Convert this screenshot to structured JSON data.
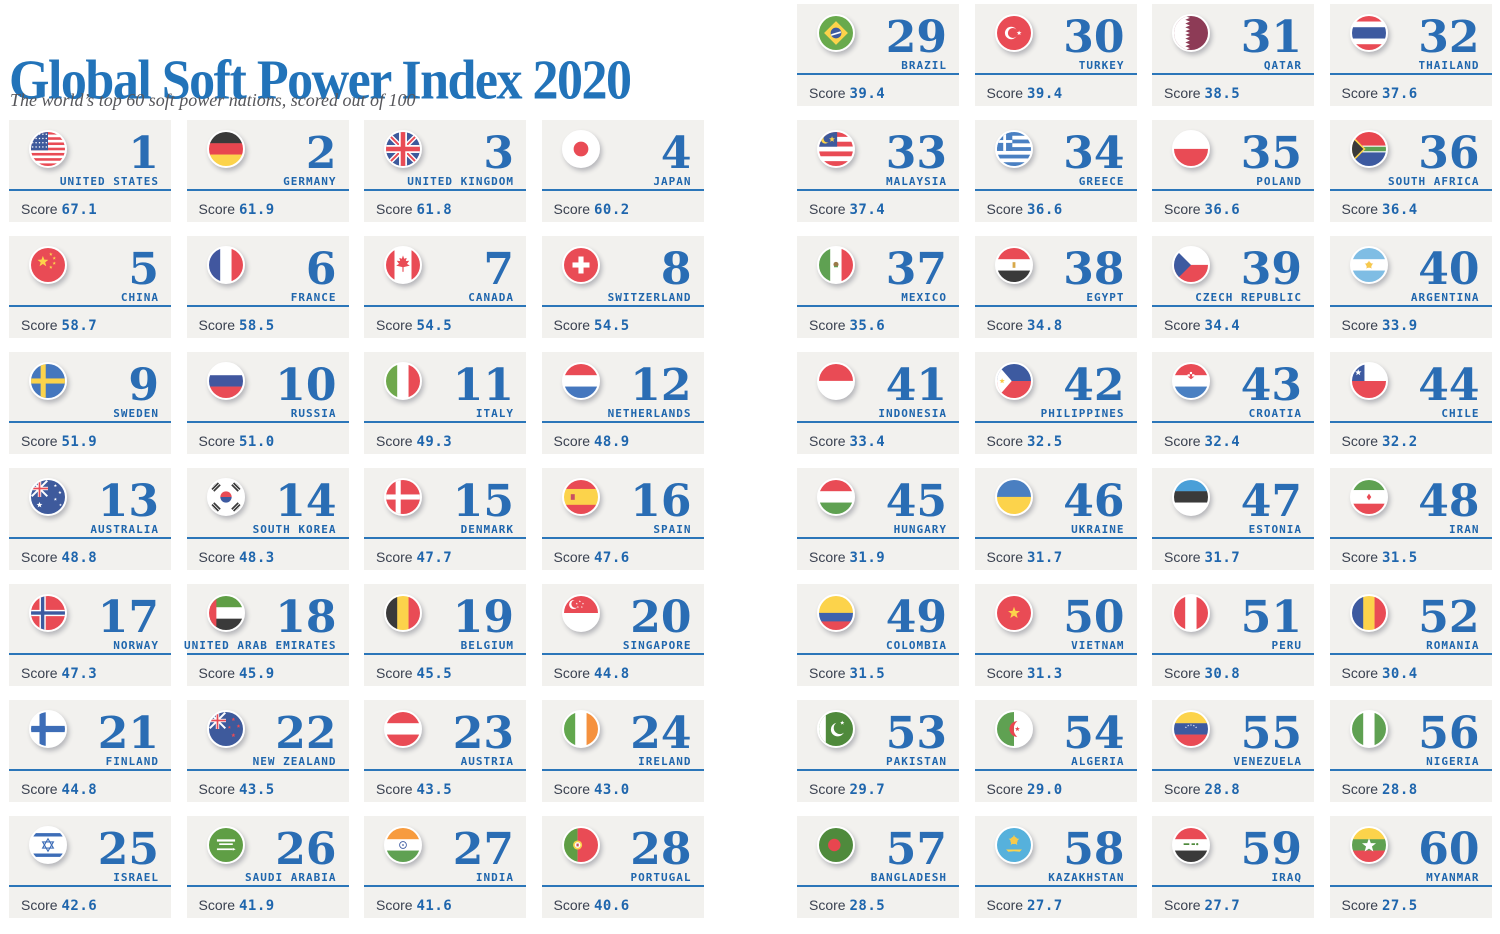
{
  "chart_data": {
    "type": "table",
    "title": "Global Soft Power Index 2020",
    "subtitle": "The world’s top 60 soft power nations, scored out of 100",
    "score_label": "Score",
    "score_range": [
      0,
      100
    ],
    "columns": [
      "rank",
      "country",
      "score"
    ],
    "rows": [
      {
        "rank": 1,
        "country": "UNITED STATES",
        "score": "67.1",
        "flag": "united-states"
      },
      {
        "rank": 2,
        "country": "GERMANY",
        "score": "61.9",
        "flag": "germany"
      },
      {
        "rank": 3,
        "country": "UNITED KINGDOM",
        "score": "61.8",
        "flag": "united-kingdom"
      },
      {
        "rank": 4,
        "country": "JAPAN",
        "score": "60.2",
        "flag": "japan"
      },
      {
        "rank": 5,
        "country": "CHINA",
        "score": "58.7",
        "flag": "china"
      },
      {
        "rank": 6,
        "country": "FRANCE",
        "score": "58.5",
        "flag": "france"
      },
      {
        "rank": 7,
        "country": "CANADA",
        "score": "54.5",
        "flag": "canada"
      },
      {
        "rank": 8,
        "country": "SWITZERLAND",
        "score": "54.5",
        "flag": "switzerland"
      },
      {
        "rank": 9,
        "country": "SWEDEN",
        "score": "51.9",
        "flag": "sweden"
      },
      {
        "rank": 10,
        "country": "RUSSIA",
        "score": "51.0",
        "flag": "russia"
      },
      {
        "rank": 11,
        "country": "ITALY",
        "score": "49.3",
        "flag": "italy"
      },
      {
        "rank": 12,
        "country": "NETHERLANDS",
        "score": "48.9",
        "flag": "netherlands"
      },
      {
        "rank": 13,
        "country": "AUSTRALIA",
        "score": "48.8",
        "flag": "australia"
      },
      {
        "rank": 14,
        "country": "SOUTH KOREA",
        "score": "48.3",
        "flag": "south-korea"
      },
      {
        "rank": 15,
        "country": "DENMARK",
        "score": "47.7",
        "flag": "denmark"
      },
      {
        "rank": 16,
        "country": "SPAIN",
        "score": "47.6",
        "flag": "spain"
      },
      {
        "rank": 17,
        "country": "NORWAY",
        "score": "47.3",
        "flag": "norway"
      },
      {
        "rank": 18,
        "country": "UNITED ARAB EMIRATES",
        "score": "45.9",
        "flag": "united-arab-emirates"
      },
      {
        "rank": 19,
        "country": "BELGIUM",
        "score": "45.5",
        "flag": "belgium"
      },
      {
        "rank": 20,
        "country": "SINGAPORE",
        "score": "44.8",
        "flag": "singapore"
      },
      {
        "rank": 21,
        "country": "FINLAND",
        "score": "44.8",
        "flag": "finland"
      },
      {
        "rank": 22,
        "country": "NEW ZEALAND",
        "score": "43.5",
        "flag": "new-zealand"
      },
      {
        "rank": 23,
        "country": "AUSTRIA",
        "score": "43.5",
        "flag": "austria"
      },
      {
        "rank": 24,
        "country": "IRELAND",
        "score": "43.0",
        "flag": "ireland"
      },
      {
        "rank": 25,
        "country": "ISRAEL",
        "score": "42.6",
        "flag": "israel"
      },
      {
        "rank": 26,
        "country": "SAUDI ARABIA",
        "score": "41.9",
        "flag": "saudi-arabia"
      },
      {
        "rank": 27,
        "country": "INDIA",
        "score": "41.6",
        "flag": "india"
      },
      {
        "rank": 28,
        "country": "PORTUGAL",
        "score": "40.6",
        "flag": "portugal"
      },
      {
        "rank": 29,
        "country": "BRAZIL",
        "score": "39.4",
        "flag": "brazil"
      },
      {
        "rank": 30,
        "country": "TURKEY",
        "score": "39.4",
        "flag": "turkey"
      },
      {
        "rank": 31,
        "country": "QATAR",
        "score": "38.5",
        "flag": "qatar"
      },
      {
        "rank": 32,
        "country": "THAILAND",
        "score": "37.6",
        "flag": "thailand"
      },
      {
        "rank": 33,
        "country": "MALAYSIA",
        "score": "37.4",
        "flag": "malaysia"
      },
      {
        "rank": 34,
        "country": "GREECE",
        "score": "36.6",
        "flag": "greece"
      },
      {
        "rank": 35,
        "country": "POLAND",
        "score": "36.6",
        "flag": "poland"
      },
      {
        "rank": 36,
        "country": "SOUTH AFRICA",
        "score": "36.4",
        "flag": "south-africa"
      },
      {
        "rank": 37,
        "country": "MEXICO",
        "score": "35.6",
        "flag": "mexico"
      },
      {
        "rank": 38,
        "country": "EGYPT",
        "score": "34.8",
        "flag": "egypt"
      },
      {
        "rank": 39,
        "country": "CZECH REPUBLIC",
        "score": "34.4",
        "flag": "czech-republic"
      },
      {
        "rank": 40,
        "country": "ARGENTINA",
        "score": "33.9",
        "flag": "argentina"
      },
      {
        "rank": 41,
        "country": "INDONESIA",
        "score": "33.4",
        "flag": "indonesia"
      },
      {
        "rank": 42,
        "country": "PHILIPPINES",
        "score": "32.5",
        "flag": "philippines"
      },
      {
        "rank": 43,
        "country": "CROATIA",
        "score": "32.4",
        "flag": "croatia"
      },
      {
        "rank": 44,
        "country": "CHILE",
        "score": "32.2",
        "flag": "chile"
      },
      {
        "rank": 45,
        "country": "HUNGARY",
        "score": "31.9",
        "flag": "hungary"
      },
      {
        "rank": 46,
        "country": "UKRAINE",
        "score": "31.7",
        "flag": "ukraine"
      },
      {
        "rank": 47,
        "country": "ESTONIA",
        "score": "31.7",
        "flag": "estonia"
      },
      {
        "rank": 48,
        "country": "IRAN",
        "score": "31.5",
        "flag": "iran"
      },
      {
        "rank": 49,
        "country": "COLOMBIA",
        "score": "31.5",
        "flag": "colombia"
      },
      {
        "rank": 50,
        "country": "VIETNAM",
        "score": "31.3",
        "flag": "vietnam"
      },
      {
        "rank": 51,
        "country": "PERU",
        "score": "30.8",
        "flag": "peru"
      },
      {
        "rank": 52,
        "country": "ROMANIA",
        "score": "30.4",
        "flag": "romania"
      },
      {
        "rank": 53,
        "country": "PAKISTAN",
        "score": "29.7",
        "flag": "pakistan"
      },
      {
        "rank": 54,
        "country": "ALGERIA",
        "score": "29.0",
        "flag": "algeria"
      },
      {
        "rank": 55,
        "country": "VENEZUELA",
        "score": "28.8",
        "flag": "venezuela"
      },
      {
        "rank": 56,
        "country": "NIGERIA",
        "score": "28.8",
        "flag": "nigeria"
      },
      {
        "rank": 57,
        "country": "BANGLADESH",
        "score": "28.5",
        "flag": "bangladesh"
      },
      {
        "rank": 58,
        "country": "KAZAKHSTAN",
        "score": "27.7",
        "flag": "kazakhstan"
      },
      {
        "rank": 59,
        "country": "IRAQ",
        "score": "27.7",
        "flag": "iraq"
      },
      {
        "rank": 60,
        "country": "MYANMAR",
        "score": "27.5",
        "flag": "myanmar"
      }
    ]
  },
  "colors": {
    "title_blue": "#2273b9",
    "rank_blue": "#2a6db4",
    "name_blue": "#1f66ad",
    "rule_blue": "#2b76b9",
    "score_value_blue": "#1f66ad",
    "score_label_dark": "#3a4150",
    "card_bg": "#f2f1ee",
    "page_bg": "#ffffff"
  }
}
